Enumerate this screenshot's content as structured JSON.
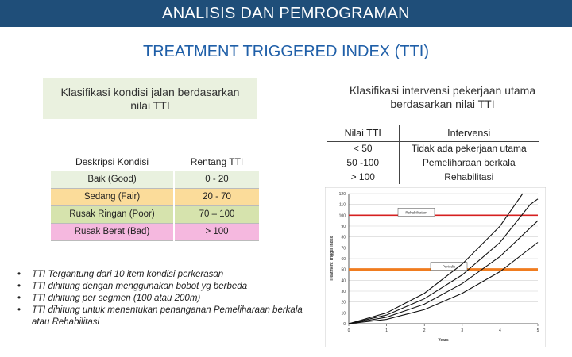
{
  "header": {
    "title": "ANALISIS DAN PEMROGRAMAN"
  },
  "subtitle": "TREATMENT TRIGGERED INDEX (TTI)",
  "left_box": {
    "line1": "Klasifikasi kondisi jalan berdasarkan",
    "line2": "nilai TTI"
  },
  "right_box": {
    "line1": "Klasifikasi intervensi pekerjaan utama",
    "line2": "berdasarkan nilai TTI"
  },
  "condition_table": {
    "headers": [
      "Deskripsi Kondisi",
      "Rentang TTI"
    ],
    "rows": [
      {
        "desc": "Baik (Good)",
        "range": "0 - 20",
        "color": "#e9f1df"
      },
      {
        "desc": "Sedang (Fair)",
        "range": "20 - 70",
        "color": "#fbdc9a"
      },
      {
        "desc": "Rusak Ringan (Poor)",
        "range": "70 – 100",
        "color": "#d6e3ad"
      },
      {
        "desc": "Rusak Berat (Bad)",
        "range": "> 100",
        "color": "#f5b8df"
      }
    ]
  },
  "intervention_table": {
    "headers": [
      "Nilai TTI",
      "Intervensi"
    ],
    "rows": [
      {
        "value": "< 50",
        "action": "Tidak ada pekerjaan utama"
      },
      {
        "value": "50 -100",
        "action": "Pemeliharaan berkala"
      },
      {
        "value": "> 100",
        "action": "Rehabilitasi"
      }
    ]
  },
  "bullets": [
    "TTI Tergantung dari 10 item kondisi perkerasan",
    "TTI dihitung dengan menggunakan bobot yg berbeda",
    "TTI dihitung per segmen (100 atau 200m)",
    "TTI dihitung untuk menentukan penanganan Pemeliharaan berkala atau Rehabilitasi"
  ],
  "chart_data": {
    "type": "line",
    "xlabel": "Years",
    "ylabel": "Treatment Trigger Index",
    "xlim": [
      0,
      5
    ],
    "ylim": [
      0,
      120
    ],
    "x_ticks": [
      "0",
      "1",
      "2",
      "3",
      "4",
      "5"
    ],
    "y_ticks": [
      "0",
      "10",
      "20",
      "30",
      "40",
      "50",
      "60",
      "70",
      "80",
      "90",
      "100",
      "110",
      "120"
    ],
    "grid": true,
    "series": [
      {
        "x": [
          0,
          1,
          2,
          3,
          4,
          4.6
        ],
        "y": [
          0,
          10,
          28,
          55,
          90,
          120
        ]
      },
      {
        "x": [
          0,
          1,
          2,
          3,
          4,
          4.8,
          5
        ],
        "y": [
          0,
          8,
          23,
          45,
          75,
          110,
          115
        ]
      },
      {
        "x": [
          0,
          1,
          2,
          3,
          4,
          5
        ],
        "y": [
          0,
          6,
          18,
          37,
          62,
          95
        ]
      },
      {
        "x": [
          0,
          1,
          2,
          3,
          4,
          5
        ],
        "y": [
          0,
          4,
          13,
          28,
          48,
          75
        ]
      }
    ],
    "thresholds": [
      {
        "y": 100,
        "label": "Rehabilitation",
        "color": "#d62020"
      },
      {
        "y": 50,
        "label": "Periodic",
        "color": "#f07c1f"
      }
    ]
  }
}
